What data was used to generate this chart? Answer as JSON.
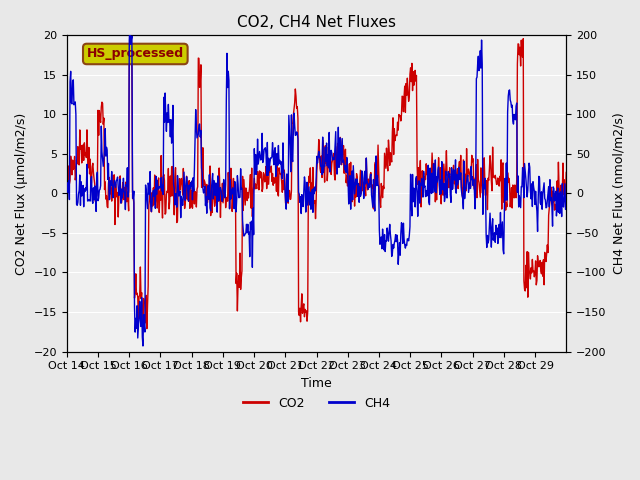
{
  "title": "CO2, CH4 Net Fluxes",
  "xlabel": "Time",
  "ylabel_left": "CO2 Net Flux (μmol/m2/s)",
  "ylabel_right": "CH4 Net Flux (nmol/m2/s)",
  "annotation": "HS_processed",
  "ylim_left": [
    -20,
    20
  ],
  "ylim_right": [
    -200,
    200
  ],
  "yticks_left": [
    -20,
    -15,
    -10,
    -5,
    0,
    5,
    10,
    15,
    20
  ],
  "yticks_right": [
    -200,
    -150,
    -100,
    -50,
    0,
    50,
    100,
    150,
    200
  ],
  "xtick_labels": [
    "Oct 14",
    "Oct 15",
    "Oct 16",
    "Oct 17",
    "Oct 18",
    "Oct 19",
    "Oct 20",
    "Oct 21",
    "Oct 22",
    "Oct 23",
    "Oct 24",
    "Oct 25",
    "Oct 26",
    "Oct 27",
    "Oct 28",
    "Oct 29"
  ],
  "co2_color": "#cc0000",
  "ch4_color": "#0000cc",
  "bg_color": "#e8e8e8",
  "plot_bg_color": "#f0f0f0",
  "legend_co2": "CO2",
  "legend_ch4": "CH4",
  "annotation_bg": "#cccc00",
  "annotation_border": "#8b4513",
  "linewidth": 1.0
}
